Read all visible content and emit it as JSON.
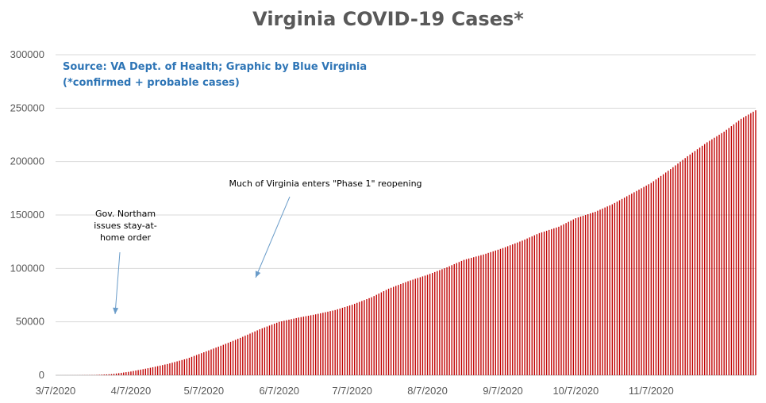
{
  "chart_data": {
    "type": "bar",
    "title": "Virginia COVID-19 Cases*",
    "source_lines": [
      "Source: VA Dept. of Health; Graphic by Blue Virginia",
      "(*confirmed + probable cases)"
    ],
    "xlabel": "",
    "ylabel": "",
    "ylim": [
      0,
      300000
    ],
    "yticks": [
      0,
      50000,
      100000,
      150000,
      200000,
      250000,
      300000
    ],
    "ytick_labels": [
      "0",
      "50000",
      "100000",
      "150000",
      "200000",
      "250000",
      "300000"
    ],
    "xticks": [
      "3/7/2020",
      "4/7/2020",
      "5/7/2020",
      "6/7/2020",
      "7/7/2020",
      "8/7/2020",
      "9/7/2020",
      "10/7/2020",
      "11/7/2020"
    ],
    "x_range": [
      "3/7/2020",
      "12/20/2020"
    ],
    "grid": true,
    "legend": "none",
    "bar_color": "#c00000",
    "series": [
      {
        "x": [
          "3/7/2020",
          "3/16/2020",
          "3/23/2020",
          "3/30/2020",
          "4/7/2020",
          "4/15/2020",
          "4/22/2020",
          "4/30/2020",
          "5/7/2020",
          "5/15/2020",
          "5/22/2020",
          "5/30/2020",
          "6/7/2020",
          "6/15/2020",
          "6/22/2020",
          "6/30/2020",
          "7/7/2020",
          "7/15/2020",
          "7/22/2020",
          "7/30/2020",
          "8/7/2020",
          "8/15/2020",
          "8/22/2020",
          "8/30/2020",
          "9/7/2020",
          "9/15/2020",
          "9/22/2020",
          "9/30/2020",
          "10/7/2020",
          "10/15/2020",
          "10/22/2020",
          "10/30/2020",
          "11/7/2020",
          "11/15/2020",
          "11/22/2020",
          "11/30/2020",
          "12/7/2020",
          "12/14/2020",
          "12/20/2020"
        ],
        "values": [
          0,
          50,
          200,
          1000,
          3500,
          7000,
          10500,
          15500,
          21500,
          28500,
          35000,
          43000,
          50000,
          54000,
          57000,
          61000,
          66000,
          73000,
          81000,
          88000,
          94000,
          101000,
          108000,
          113000,
          119000,
          126000,
          133000,
          139000,
          147000,
          153000,
          160000,
          170000,
          180000,
          193000,
          205000,
          218000,
          228000,
          240000,
          248000
        ]
      }
    ],
    "annotations": [
      {
        "text_lines": [
          "Gov. Northam",
          "issues stay-at-",
          "home order"
        ],
        "points_to": "3/26/2020"
      },
      {
        "text_lines": [
          "Much of Virginia enters \"Phase 1\" reopening"
        ],
        "points_to": "5/15/2020"
      }
    ]
  }
}
